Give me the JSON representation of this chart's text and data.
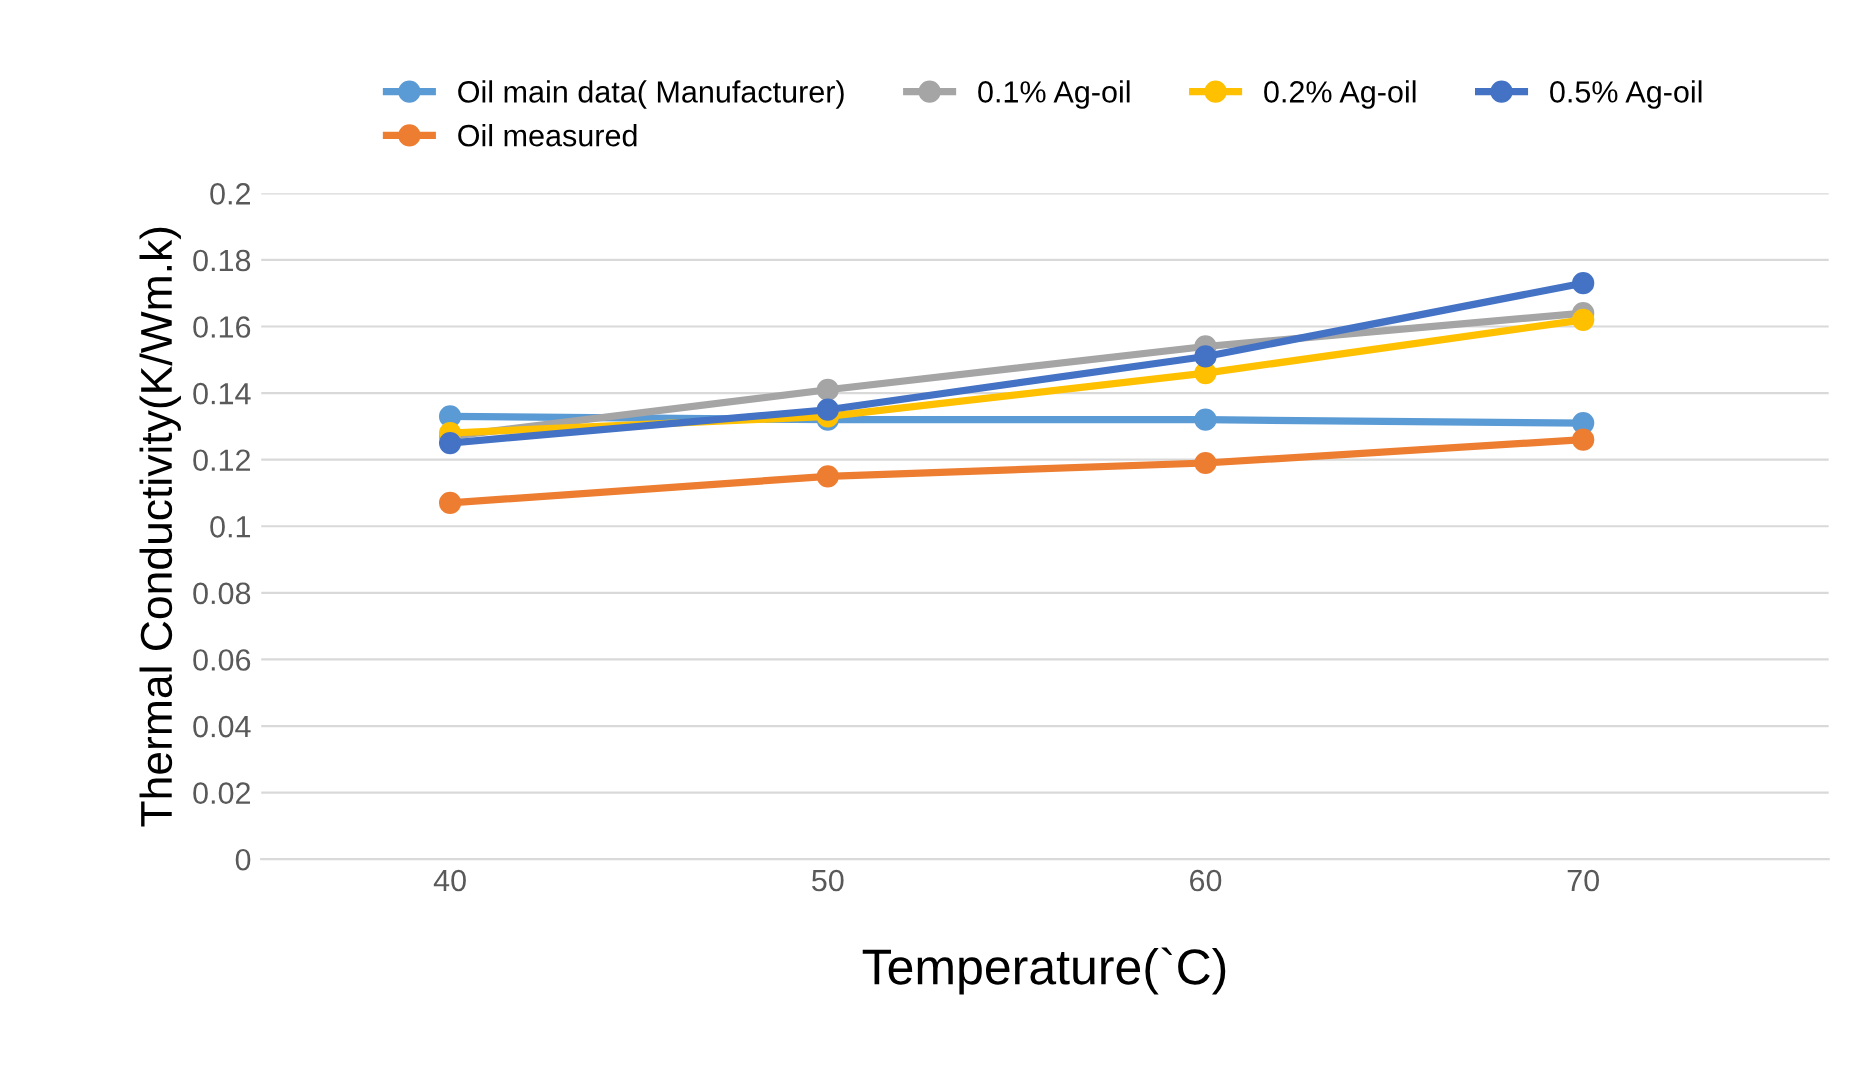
{
  "chart_data": {
    "type": "line",
    "xlabel": "Temperature(`C)",
    "ylabel": "Thermal Conductivity(K/Wm.k)",
    "categories": [
      "40",
      "50",
      "60",
      "70"
    ],
    "series": [
      {
        "name": "Oil main data( Manufacturer)",
        "color": "#5b9bd5",
        "values": [
          0.133,
          0.132,
          0.132,
          0.131
        ]
      },
      {
        "name": "Oil measured",
        "color": "#ed7d31",
        "values": [
          0.107,
          0.115,
          0.119,
          0.126
        ]
      },
      {
        "name": "0.1% Ag-oil",
        "color": "#a5a5a5",
        "values": [
          0.127,
          0.141,
          0.154,
          0.164
        ]
      },
      {
        "name": "0.2% Ag-oil",
        "color": "#ffc000",
        "values": [
          0.128,
          0.133,
          0.146,
          0.162
        ]
      },
      {
        "name": "0.5% Ag-oil",
        "color": "#4472c4",
        "values": [
          0.125,
          0.135,
          0.151,
          0.173
        ]
      }
    ],
    "ylim": [
      0,
      0.2
    ],
    "yticks": [
      0,
      0.02,
      0.04,
      0.06,
      0.08,
      0.1,
      0.12,
      0.14,
      0.16,
      0.18,
      0.2
    ],
    "grid": "y",
    "legend": "top",
    "marker": "circle",
    "line_style": "solid"
  }
}
